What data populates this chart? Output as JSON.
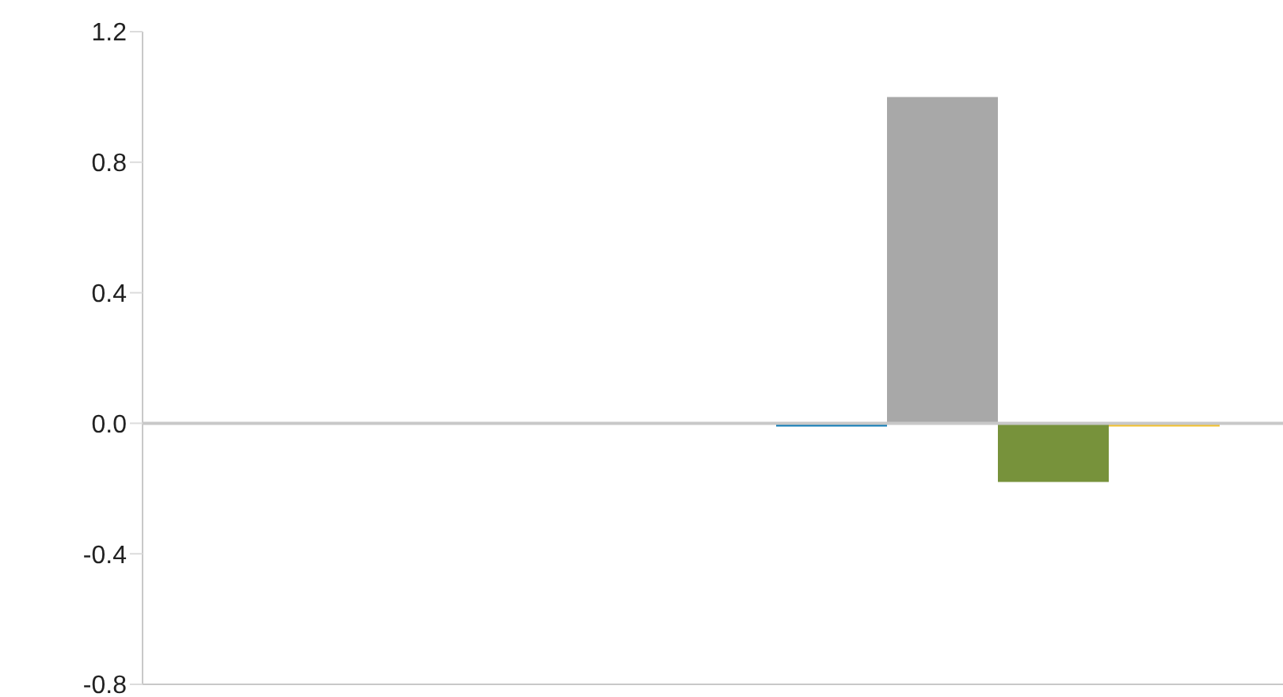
{
  "chart_data": {
    "type": "bar",
    "categories": [
      null,
      null
    ],
    "series": [
      {
        "color": "#0e7bb6",
        "values": [
          0,
          -0.01
        ]
      },
      {
        "color": "#a8a8a8",
        "values": [
          0,
          1.0
        ]
      },
      {
        "color": "#77923b",
        "values": [
          0,
          -0.18
        ]
      },
      {
        "color": "#f2c12e",
        "values": [
          0,
          -0.01
        ]
      }
    ],
    "ylim": [
      -0.8,
      1.2
    ],
    "yticks": [
      {
        "value": 1.2,
        "label": "1.2"
      },
      {
        "value": 0.8,
        "label": "0.8"
      },
      {
        "value": 0.4,
        "label": "0.4"
      },
      {
        "value": 0,
        "label": "0.0"
      },
      {
        "value": -0.4,
        "label": "-0.4"
      },
      {
        "value": -0.8,
        "label": "-0.8"
      }
    ],
    "ref_lines": [
      {
        "axis": "y",
        "value": 0,
        "color": "#c8c8c8"
      }
    ],
    "grid": false,
    "legend": false
  }
}
